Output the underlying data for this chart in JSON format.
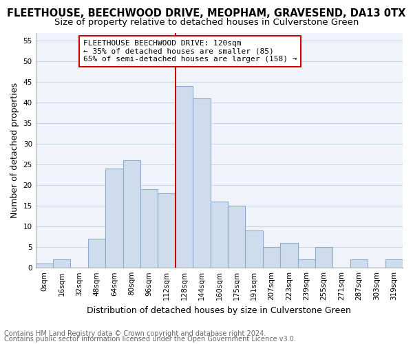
{
  "title": "FLEETHOUSE, BEECHWOOD DRIVE, MEOPHAM, GRAVESEND, DA13 0TX",
  "subtitle": "Size of property relative to detached houses in Culverstone Green",
  "xlabel": "Distribution of detached houses by size in Culverstone Green",
  "ylabel": "Number of detached properties",
  "footnote1": "Contains HM Land Registry data © Crown copyright and database right 2024.",
  "footnote2": "Contains public sector information licensed under the Open Government Licence v3.0.",
  "bin_labels": [
    "0sqm",
    "16sqm",
    "32sqm",
    "48sqm",
    "64sqm",
    "80sqm",
    "96sqm",
    "112sqm",
    "128sqm",
    "144sqm",
    "160sqm",
    "175sqm",
    "191sqm",
    "207sqm",
    "223sqm",
    "239sqm",
    "255sqm",
    "271sqm",
    "287sqm",
    "303sqm",
    "319sqm"
  ],
  "bar_values": [
    1,
    2,
    0,
    7,
    24,
    26,
    19,
    18,
    44,
    41,
    16,
    15,
    9,
    5,
    6,
    2,
    5,
    0,
    2,
    0,
    2
  ],
  "bar_color": "#cfdcee",
  "bar_edge_color": "#8eaacc",
  "vline_color": "#cc0000",
  "vline_x_index": 8,
  "annotation_box_text": "FLEETHOUSE BEECHWOOD DRIVE: 120sqm\n← 35% of detached houses are smaller (85)\n65% of semi-detached houses are larger (158) →",
  "annotation_box_color": "#cc0000",
  "ylim": [
    0,
    57
  ],
  "yticks": [
    0,
    5,
    10,
    15,
    20,
    25,
    30,
    35,
    40,
    45,
    50,
    55
  ],
  "grid_color": "#c8d8e8",
  "bg_color": "#ffffff",
  "plot_bg_color": "#f0f4fa",
  "title_fontsize": 10.5,
  "subtitle_fontsize": 9.5,
  "label_fontsize": 9,
  "tick_fontsize": 7.5,
  "footnote_fontsize": 7,
  "annot_fontsize": 8
}
